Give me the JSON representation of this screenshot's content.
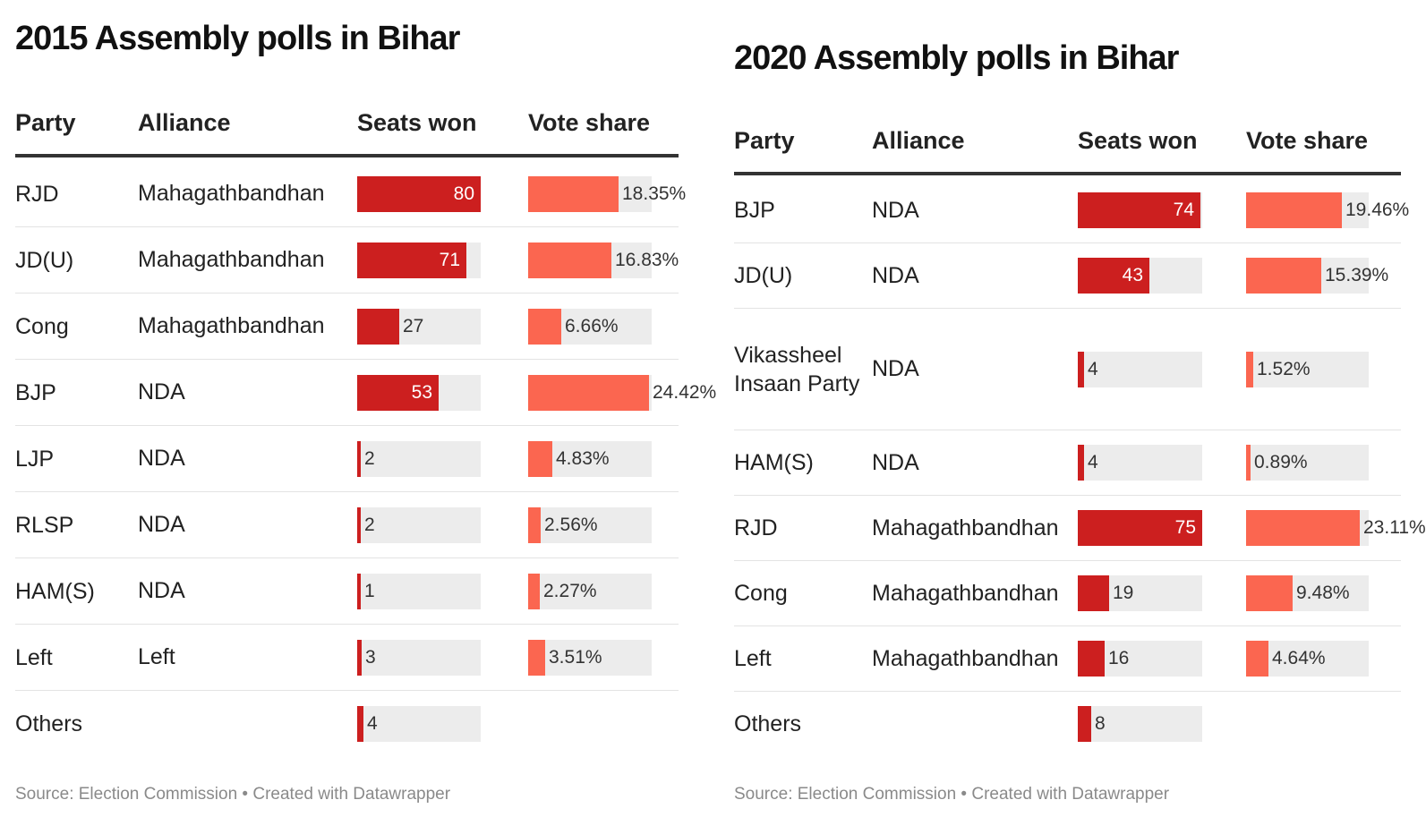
{
  "chart_data": [
    {
      "type": "table",
      "title": "2015 Assembly polls in Bihar",
      "columns": [
        "Party",
        "Alliance",
        "Seats won",
        "Vote share"
      ],
      "seats_max": 80,
      "vote_max": 25,
      "rows": [
        {
          "party": "RJD",
          "alliance": "Mahagathbandhan",
          "seats": 80,
          "seats_label": "80",
          "vote": 18.35,
          "vote_label": "18.35%"
        },
        {
          "party": "JD(U)",
          "alliance": "Mahagathbandhan",
          "seats": 71,
          "seats_label": "71",
          "vote": 16.83,
          "vote_label": "16.83%"
        },
        {
          "party": "Cong",
          "alliance": "Mahagathbandhan",
          "seats": 27,
          "seats_label": "27",
          "vote": 6.66,
          "vote_label": "6.66%"
        },
        {
          "party": "BJP",
          "alliance": "NDA",
          "seats": 53,
          "seats_label": "53",
          "vote": 24.42,
          "vote_label": "24.42%"
        },
        {
          "party": "LJP",
          "alliance": "NDA",
          "seats": 2,
          "seats_label": "2",
          "vote": 4.83,
          "vote_label": "4.83%"
        },
        {
          "party": "RLSP",
          "alliance": "NDA",
          "seats": 2,
          "seats_label": "2",
          "vote": 2.56,
          "vote_label": "2.56%"
        },
        {
          "party": "HAM(S)",
          "alliance": "NDA",
          "seats": 1,
          "seats_label": "1",
          "vote": 2.27,
          "vote_label": "2.27%"
        },
        {
          "party": "Left",
          "alliance": "Left",
          "seats": 3,
          "seats_label": "3",
          "vote": 3.51,
          "vote_label": "3.51%"
        },
        {
          "party": "Others",
          "alliance": "",
          "seats": 4,
          "seats_label": "4",
          "vote": null,
          "vote_label": ""
        }
      ],
      "footer": "Source: Election Commission • Created with Datawrapper"
    },
    {
      "type": "table",
      "title": "2020 Assembly polls in Bihar",
      "columns": [
        "Party",
        "Alliance",
        "Seats won",
        "Vote share"
      ],
      "seats_max": 75,
      "vote_max": 25,
      "rows": [
        {
          "party": "BJP",
          "alliance": "NDA",
          "seats": 74,
          "seats_label": "74",
          "vote": 19.46,
          "vote_label": "19.46%"
        },
        {
          "party": "JD(U)",
          "alliance": "NDA",
          "seats": 43,
          "seats_label": "43",
          "vote": 15.39,
          "vote_label": "15.39%"
        },
        {
          "party": "Vikassheel Insaan Party",
          "alliance": "NDA",
          "seats": 4,
          "seats_label": "4",
          "vote": 1.52,
          "vote_label": "1.52%"
        },
        {
          "party": "HAM(S)",
          "alliance": "NDA",
          "seats": 4,
          "seats_label": "4",
          "vote": 0.89,
          "vote_label": "0.89%"
        },
        {
          "party": "RJD",
          "alliance": "Mahagathbandhan",
          "seats": 75,
          "seats_label": "75",
          "vote": 23.11,
          "vote_label": "23.11%"
        },
        {
          "party": "Cong",
          "alliance": "Mahagathbandhan",
          "seats": 19,
          "seats_label": "19",
          "vote": 9.48,
          "vote_label": "9.48%"
        },
        {
          "party": "Left",
          "alliance": "Mahagathbandhan",
          "seats": 16,
          "seats_label": "16",
          "vote": 4.64,
          "vote_label": "4.64%"
        },
        {
          "party": "Others",
          "alliance": "",
          "seats": 8,
          "seats_label": "8",
          "vote": null,
          "vote_label": ""
        }
      ],
      "footer": "Source: Election Commission • Created with Datawrapper"
    }
  ],
  "colors": {
    "seats_bar": "#cc1f1f",
    "vote_bar": "#fb6650",
    "bar_track": "#ececec"
  }
}
